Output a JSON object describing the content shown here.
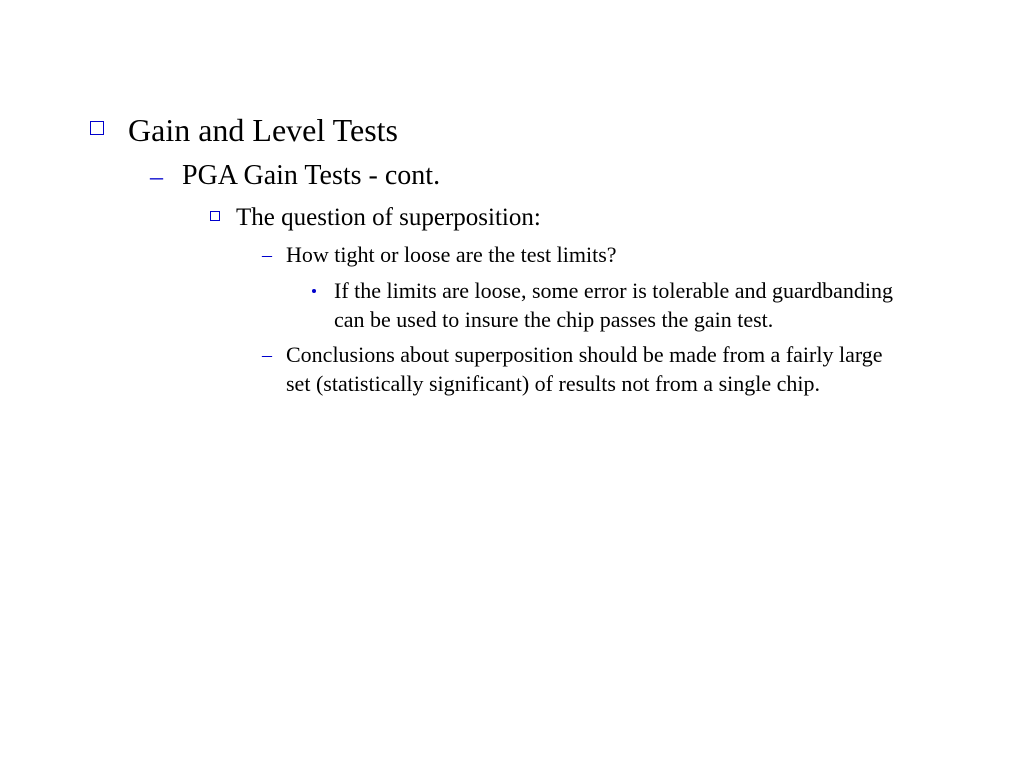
{
  "colors": {
    "bullet": "#0000cc",
    "text": "#000000",
    "background": "#ffffff"
  },
  "typography": {
    "family": "Times New Roman",
    "sizes_pt": {
      "l1": 32,
      "l2": 28,
      "l3": 25,
      "l4": 22,
      "l5": 22
    }
  },
  "outline": {
    "l1": "Gain and Level Tests",
    "l2": "PGA Gain Tests - cont.",
    "l3": "The question of superposition:",
    "l4a": "How tight or loose are the test limits?",
    "l5a": "If the limits are loose, some error is tolerable and guardbanding can be used to insure the chip passes the gain test.",
    "l4b": "Conclusions about superposition should be made from a fairly large set (statistically significant) of results not from a single chip."
  }
}
